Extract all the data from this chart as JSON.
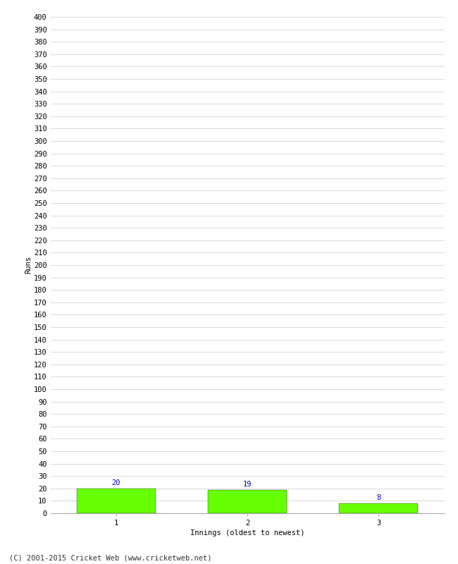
{
  "categories": [
    1,
    2,
    3
  ],
  "values": [
    20,
    19,
    8
  ],
  "bar_color": "#66ff00",
  "label_color": "#0000cc",
  "ylabel": "Runs",
  "xlabel": "Innings (oldest to newest)",
  "footer": "(C) 2001-2015 Cricket Web (www.cricketweb.net)",
  "ylim": [
    0,
    400
  ],
  "ytick_step": 10,
  "background_color": "#ffffff",
  "grid_color": "#cccccc",
  "tick_fontsize": 7.5,
  "ylabel_fontsize": 7.5,
  "xlabel_fontsize": 7.5,
  "footer_fontsize": 7.5,
  "value_label_fontsize": 7.5
}
